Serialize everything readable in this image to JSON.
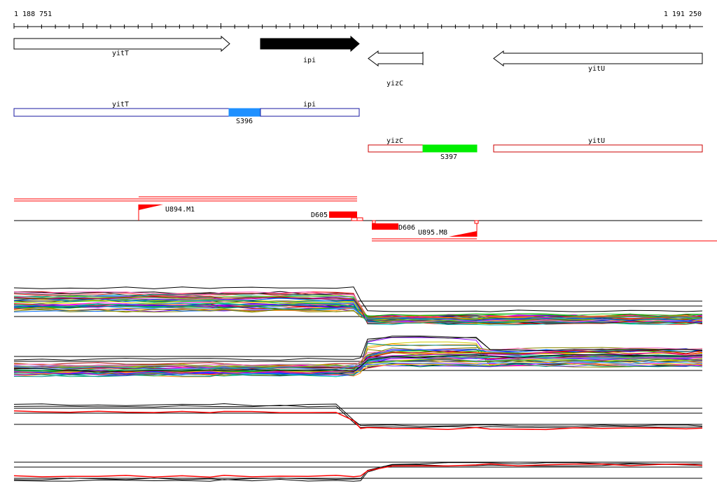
{
  "ruler": {
    "start_label": "1 188 751",
    "end_label": "1 191 250",
    "start": 1188751,
    "end": 1191250
  },
  "genes": [
    {
      "name": "yitT",
      "strand": "+",
      "style": "outline"
    },
    {
      "name": "ipi",
      "strand": "+",
      "style": "filled"
    },
    {
      "name": "yizC",
      "strand": "-",
      "style": "outline"
    },
    {
      "name": "yitU",
      "strand": "-",
      "style": "outline"
    }
  ],
  "transcripts_plus": {
    "color": "#1a1aa0",
    "segments": [
      {
        "label": "yitT"
      },
      {
        "label": "S396",
        "color": "#1e90ff"
      },
      {
        "label": "ipi"
      }
    ]
  },
  "transcripts_minus": {
    "color": "#cc0000",
    "segments": [
      {
        "label": "yizC"
      },
      {
        "label": "S397",
        "color": "#00ee00"
      },
      {
        "label": "yitU"
      }
    ]
  },
  "features": [
    {
      "label": "U894.M1",
      "kind": "upshift"
    },
    {
      "label": "D605",
      "kind": "downshift"
    },
    {
      "label": "D606",
      "kind": "downshift"
    },
    {
      "label": "U895.M8",
      "kind": "upshift"
    }
  ],
  "colors": {
    "feature_red": "#ff0000",
    "track_black": "#000000"
  },
  "expression_panels": [
    {
      "id": "panel-plus-many",
      "pattern": "high-then-drop"
    },
    {
      "id": "panel-minus-many",
      "pattern": "low-then-rise"
    },
    {
      "id": "panel-plus-few",
      "pattern": "high-then-drop"
    },
    {
      "id": "panel-minus-few",
      "pattern": "low-then-rise"
    }
  ]
}
